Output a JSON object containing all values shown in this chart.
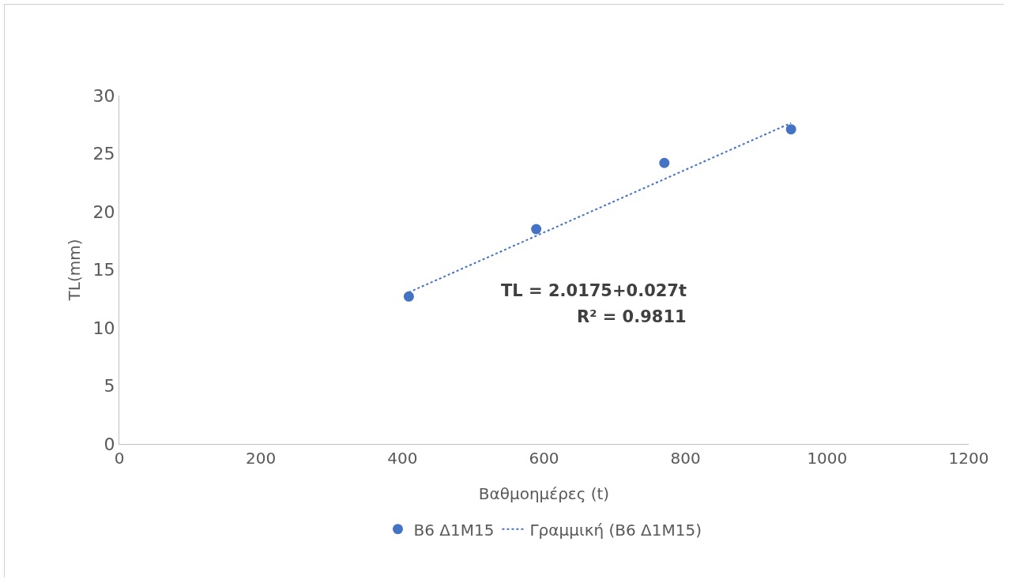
{
  "chart_data": {
    "type": "scatter",
    "xlabel": "Βαθμοημέρες (t)",
    "ylabel": "TL(mm)",
    "xlim": [
      0,
      1200
    ],
    "xticks": [
      0,
      200,
      400,
      600,
      800,
      1000,
      1200
    ],
    "ylim": [
      0,
      30
    ],
    "yticks": [
      0,
      5,
      10,
      15,
      20,
      25,
      30
    ],
    "grid": false,
    "legend": "bottom",
    "marker": "circle",
    "series": [
      {
        "name": "B6 Δ1M15",
        "color": "#4472c4",
        "x": [
          409,
          589,
          770,
          949
        ],
        "values": [
          12.7,
          18.5,
          24.2,
          27.1
        ]
      },
      {
        "name": "Γραμμική (B6 Δ1M15)",
        "type": "line",
        "marker": "none",
        "line_style": "dotted",
        "color": "#4472c4",
        "x": [
          409,
          949
        ],
        "values": [
          13.06,
          27.64
        ]
      }
    ],
    "annotations": [
      "TL = 2.0175+0.027t",
      "R² = 0.9811"
    ]
  }
}
